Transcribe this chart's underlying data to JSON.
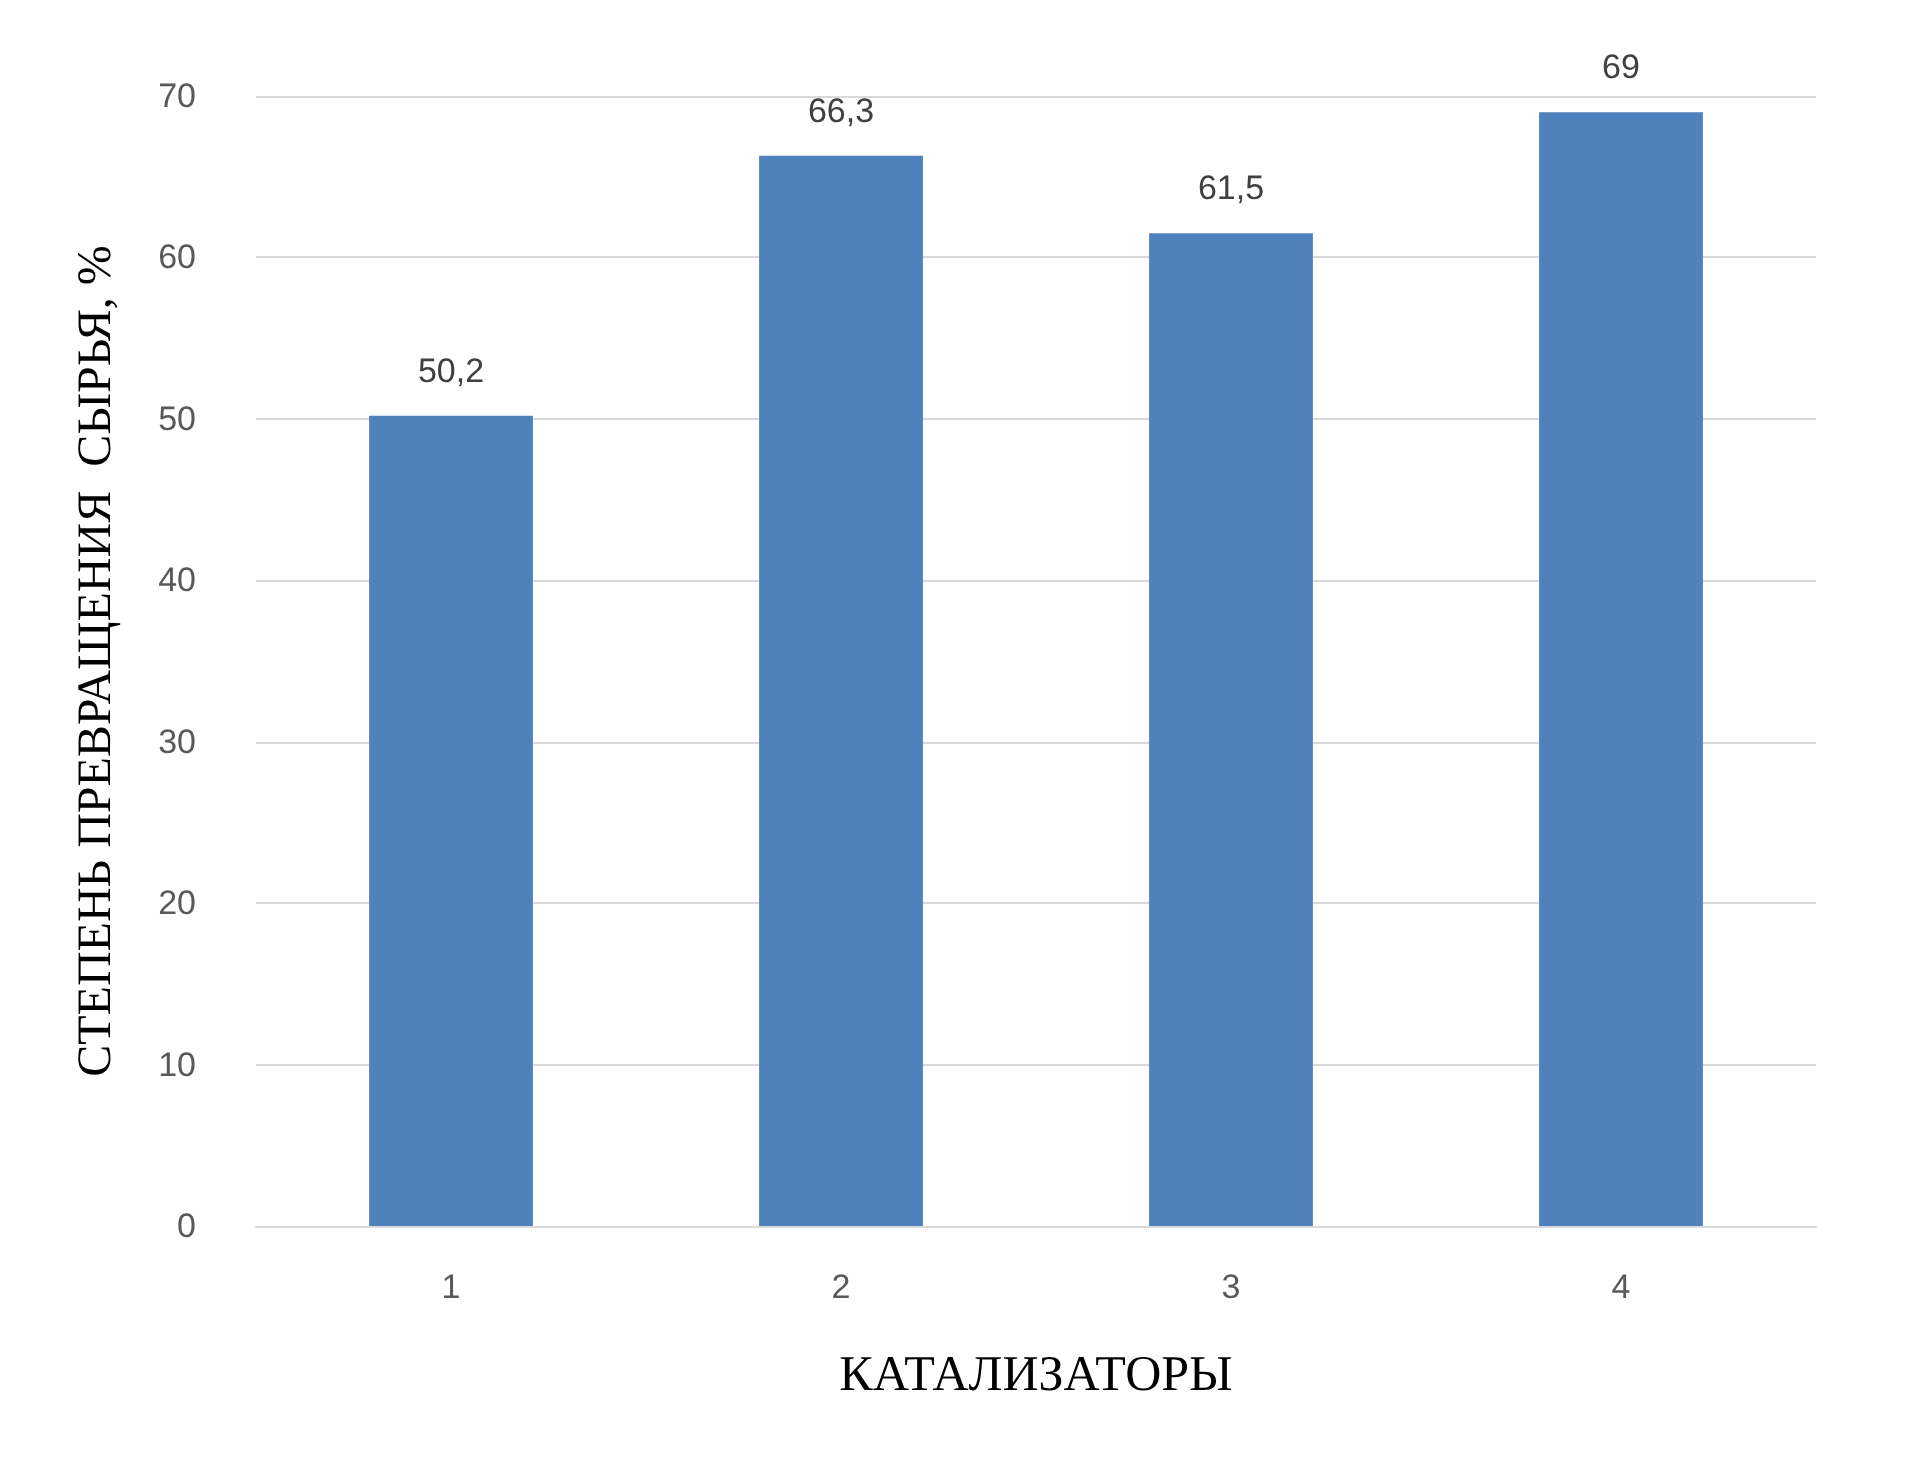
{
  "chart_data": {
    "type": "bar",
    "xlabel": "КАТАЛИЗАТОРЫ",
    "ylabel": "СТЕПЕНЬ ПРЕВРАЩЕНИЯ  СЫРЬЯ, %",
    "categories": [
      "1",
      "2",
      "3",
      "4"
    ],
    "values": [
      50.2,
      66.3,
      61.5,
      69
    ],
    "value_labels": [
      "50,2",
      "66,3",
      "61,5",
      "69"
    ],
    "color": "#4f81bd",
    "ylim": [
      0,
      70
    ],
    "yticks": [
      0,
      10,
      20,
      30,
      40,
      50,
      60,
      70
    ],
    "grid": "y"
  }
}
